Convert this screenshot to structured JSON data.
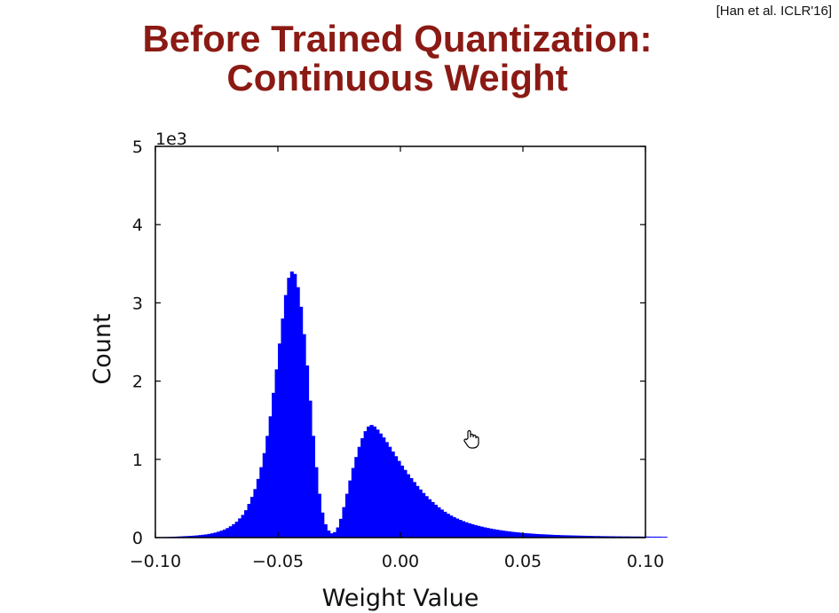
{
  "citation": "[Han et al. ICLR'16]",
  "title_line1": "Before Trained Quantization:",
  "title_line2": "Continuous Weight",
  "colors": {
    "title": "#8b1a14",
    "bars": "#0000ff",
    "axis": "#000000"
  },
  "cursor_icon": "hand-pointer-icon",
  "chart_data": {
    "type": "bar",
    "subtype": "histogram",
    "xlabel": "Weight Value",
    "ylabel": "Count",
    "y_multiplier_label": "1e3",
    "xlim": [
      -0.1,
      0.1
    ],
    "ylim": [
      0,
      5000
    ],
    "x_ticks": [
      -0.1,
      -0.05,
      0.0,
      0.05,
      0.1
    ],
    "x_tick_labels": [
      "−0.10",
      "−0.05",
      "0.00",
      "0.05",
      "0.10"
    ],
    "y_ticks": [
      0,
      1000,
      2000,
      3000,
      4000,
      5000
    ],
    "y_tick_labels": [
      "0",
      "1",
      "2",
      "3",
      "4",
      "5"
    ],
    "grid": false,
    "legend": "none",
    "bin_width": 0.00125,
    "bins_start": -0.1,
    "counts": [
      5,
      6,
      7,
      8,
      9,
      11,
      12,
      14,
      16,
      18,
      20,
      22,
      25,
      28,
      32,
      36,
      41,
      47,
      55,
      64,
      75,
      88,
      103,
      122,
      145,
      172,
      204,
      245,
      290,
      350,
      430,
      520,
      620,
      750,
      900,
      1080,
      1300,
      1550,
      1850,
      2150,
      2480,
      2800,
      3100,
      3320,
      3400,
      3370,
      3200,
      2950,
      2600,
      2200,
      1750,
      1300,
      900,
      560,
      320,
      170,
      90,
      55,
      70,
      130,
      240,
      390,
      560,
      730,
      890,
      1030,
      1160,
      1270,
      1360,
      1420,
      1440,
      1420,
      1380,
      1330,
      1280,
      1220,
      1160,
      1100,
      1040,
      980,
      920,
      865,
      810,
      760,
      710,
      660,
      615,
      570,
      530,
      490,
      455,
      420,
      388,
      358,
      330,
      305,
      282,
      262,
      243,
      226,
      210,
      196,
      183,
      171,
      160,
      150,
      140,
      131,
      123,
      115,
      108,
      101,
      95,
      89,
      84,
      79,
      74,
      70,
      66,
      62,
      58,
      55,
      52,
      49,
      46,
      44,
      42,
      40,
      38,
      36,
      34,
      33,
      31,
      30,
      29,
      28,
      27,
      26,
      25,
      24,
      23,
      22,
      21,
      20,
      20,
      19,
      18,
      18,
      17,
      17,
      16,
      16,
      15,
      15,
      15,
      14,
      14,
      14,
      13,
      13,
      13,
      12,
      12,
      12,
      12,
      11,
      11
    ]
  }
}
